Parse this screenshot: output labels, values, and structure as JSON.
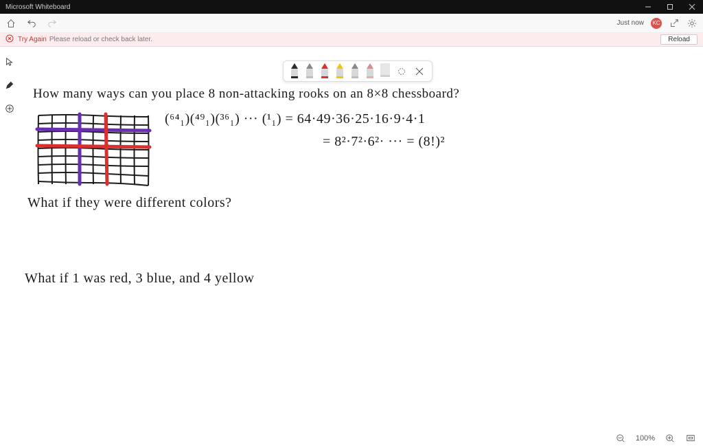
{
  "titlebar": {
    "title": "Microsoft Whiteboard"
  },
  "toolbar": {
    "justnow": "Just now",
    "avatar": "KC"
  },
  "error": {
    "title": "Try Again",
    "message": "Please reload or check back later.",
    "reload": "Reload"
  },
  "pens": {
    "colors": [
      "#2b2b2b",
      "#c0c0c0",
      "#d93030",
      "#f5c400",
      "#bdbdbd",
      "#e6b0aa",
      "#cfcfcf"
    ],
    "tips": [
      "#2b2b2b",
      "#888888",
      "#d93030",
      "#f5c400",
      "#888888",
      "#d98c8c",
      "#aaaaaa"
    ]
  },
  "handwriting": {
    "line1": "How many ways can you place 8 non-attacking rooks on an 8×8 chessboard?",
    "eq1a": "(⁶⁴₁)(⁴⁹₁)(³⁶₁) ··· (¹₁) = 64·49·36·25·16·9·4·1",
    "eq1b": "= 8²·7²·6²· ··· = (8!)²",
    "line2": "What if they were different colors?",
    "line3": "What if 1 was red, 3 blue, and 4 yellow"
  },
  "grid": {
    "stroke": "#1c1c1c",
    "purple": "#6a2fb0",
    "red": "#d93030"
  },
  "status": {
    "zoom": "100%"
  }
}
